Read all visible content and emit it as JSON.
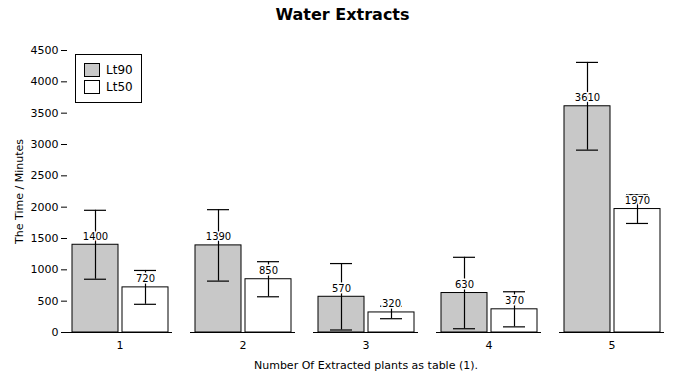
{
  "chart_data": {
    "type": "bar",
    "title": "Water Extracts",
    "xlabel": "Number Of Extracted plants as table (1).",
    "ylabel": "The Time / Minutes",
    "categories": [
      1,
      2,
      3,
      4,
      5
    ],
    "series": [
      {
        "name": "Lt90",
        "color": "#c8c8c8",
        "values": [
          1400,
          1390,
          570,
          630,
          3610
        ],
        "errors": [
          550,
          570,
          530,
          570,
          700
        ]
      },
      {
        "name": "Lt50",
        "color": "#ffffff",
        "values": [
          720,
          850,
          320,
          370,
          1970
        ],
        "errors": [
          270,
          280,
          100,
          280,
          230
        ]
      }
    ],
    "ylim": [
      0,
      4500
    ],
    "yticks": [
      0,
      500,
      1000,
      1500,
      2000,
      2500,
      3000,
      3500,
      4000,
      4500
    ],
    "data_labels": true,
    "legend": "upper left"
  }
}
